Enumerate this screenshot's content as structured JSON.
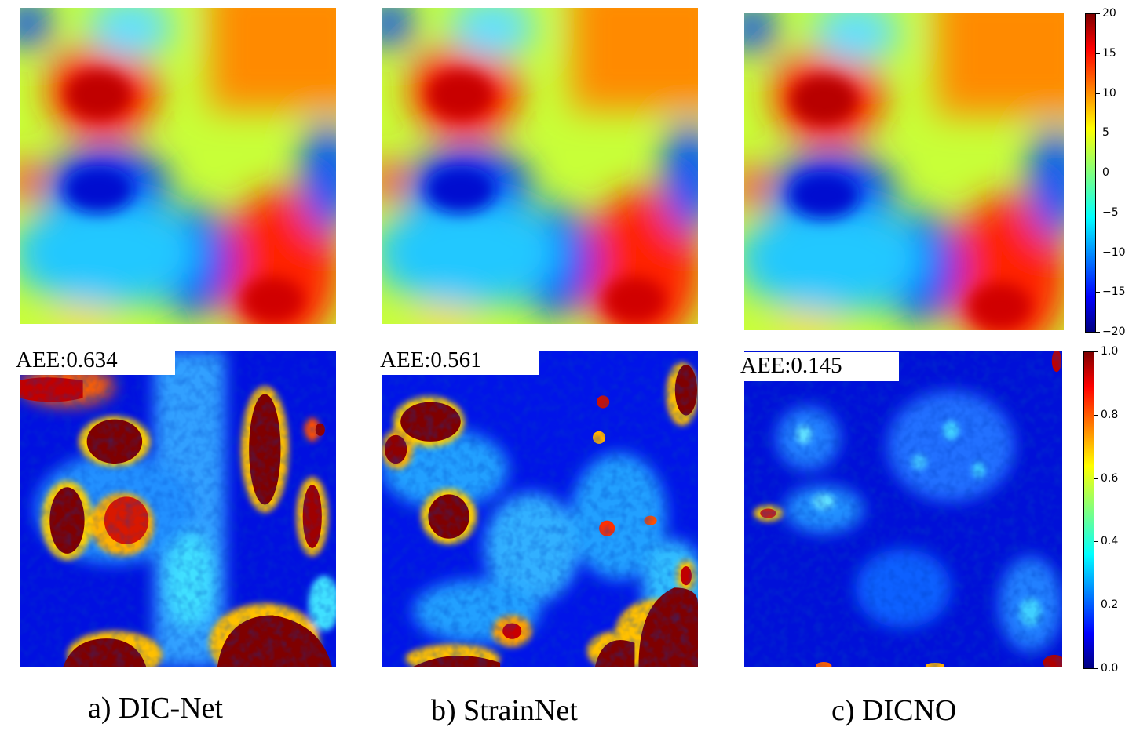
{
  "panels": [
    {
      "id": "a",
      "caption": "a) DIC-Net",
      "aee_label": "AEE:0.634"
    },
    {
      "id": "b",
      "caption": "b) StrainNet",
      "aee_label": "AEE:0.561"
    },
    {
      "id": "c",
      "caption": "c) DICNO",
      "aee_label": "AEE:0.145"
    }
  ],
  "colorbar_displacement": {
    "ticks": [
      "20",
      "15",
      "10",
      "5",
      "0",
      "−5",
      "−10",
      "−15",
      "−20"
    ],
    "range": [
      -20,
      20
    ],
    "colormap": "jet"
  },
  "colorbar_error": {
    "ticks": [
      "1.0",
      "0.8",
      "0.6",
      "0.4",
      "0.2",
      "0.0"
    ],
    "range": [
      0.0,
      1.0
    ],
    "colormap": "jet"
  },
  "colors": {
    "jet_dark_red": "#7f0000",
    "jet_red": "#ff1a00",
    "jet_orange": "#ff8000",
    "jet_yellow": "#ffee00",
    "jet_green": "#7fff7f",
    "jet_cyan": "#00d4ff",
    "jet_blue": "#0040ff",
    "jet_dark_blue": "#00008f"
  }
}
